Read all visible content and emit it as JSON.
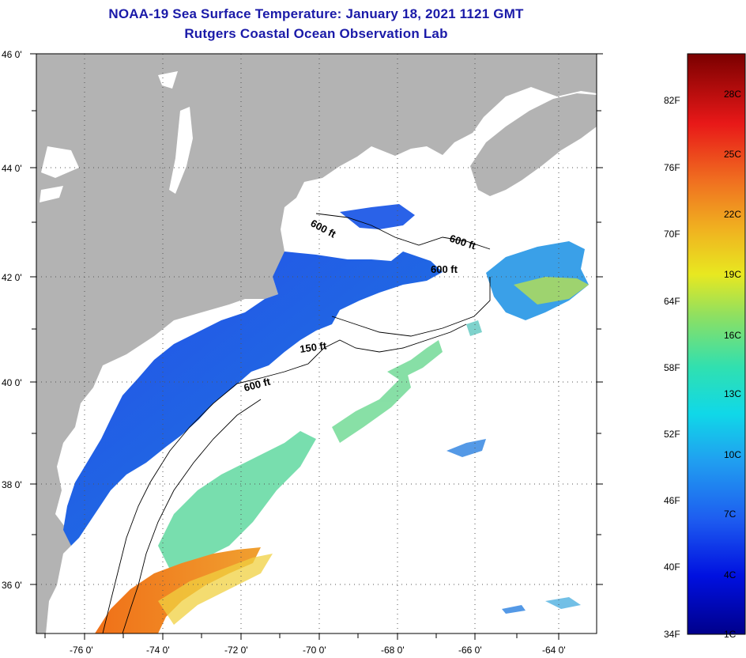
{
  "header": {
    "title": "NOAA-19 Sea Surface Temperature:  January 18, 2021 1121 GMT",
    "subtitle": "Rutgers Coastal Ocean Observation Lab"
  },
  "map": {
    "lat_ticks": [
      "46 0'",
      "44 0'",
      "42 0'",
      "40 0'",
      "38 0'",
      "36 0'"
    ],
    "lon_ticks": [
      "-76 0'",
      "-74 0'",
      "-72 0'",
      "-70 0'",
      "-68 0'",
      "-66 0'",
      "-64 0'"
    ],
    "contour_labels": [
      "600 ft",
      "600 ft",
      "600 ft",
      "150 ft",
      "600 ft"
    ],
    "colors": {
      "land": "#b3b3b3",
      "cloud": "#ffffff",
      "cold": "#1a5ee0",
      "warm": "#f08020"
    }
  },
  "colorbar": {
    "fahrenheit": [
      "82F",
      "76F",
      "70F",
      "64F",
      "58F",
      "52F",
      "46F",
      "40F",
      "34F"
    ],
    "celsius": [
      "28C",
      "25C",
      "22C",
      "19C",
      "16C",
      "13C",
      "10C",
      "7C",
      "4C",
      "1C"
    ]
  }
}
